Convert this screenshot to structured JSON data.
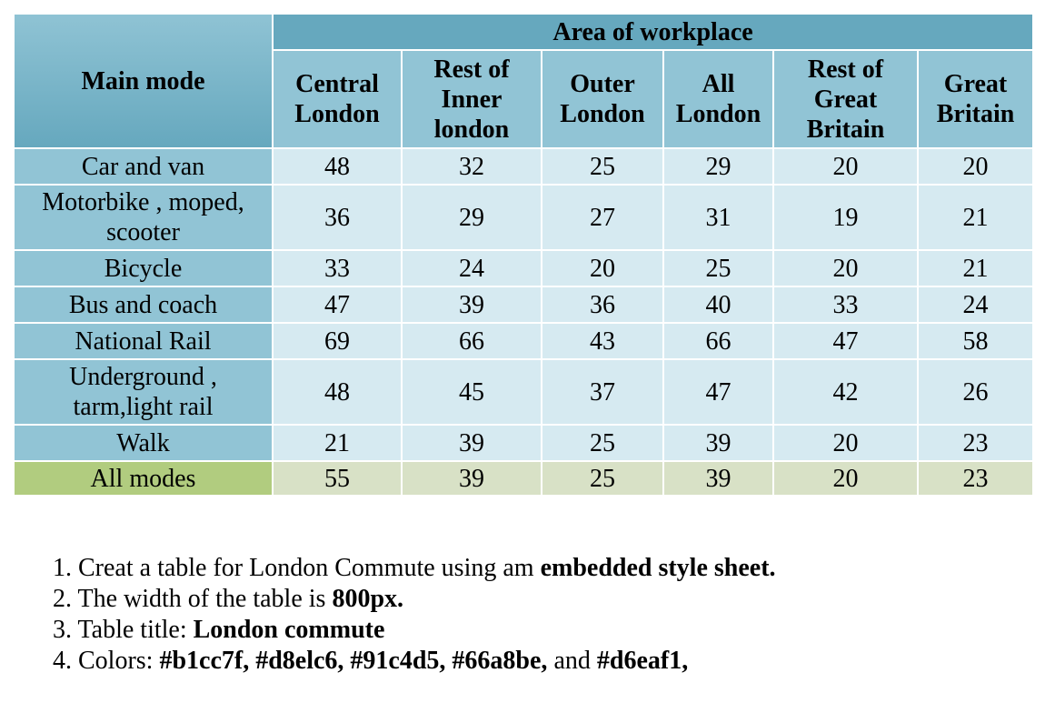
{
  "table": {
    "main_header": "Main mode",
    "group_header": "Area of workplace",
    "columns": [
      [
        "Central",
        "London"
      ],
      [
        "Rest of",
        "Inner",
        "london"
      ],
      [
        "Outer",
        "London"
      ],
      [
        "All",
        "London"
      ],
      [
        "Rest of",
        "Great",
        "Britain"
      ],
      [
        "Great",
        "Britain"
      ]
    ],
    "rows": [
      {
        "label": [
          "Car and van"
        ],
        "values": [
          "48",
          "32",
          "25",
          "29",
          "20",
          "20"
        ]
      },
      {
        "label": [
          "Motorbike , moped,",
          "scooter"
        ],
        "values": [
          "36",
          "29",
          "27",
          "31",
          "19",
          "21"
        ]
      },
      {
        "label": [
          "Bicycle"
        ],
        "values": [
          "33",
          "24",
          "20",
          "25",
          "20",
          "21"
        ]
      },
      {
        "label": [
          "Bus and coach"
        ],
        "values": [
          "47",
          "39",
          "36",
          "40",
          "33",
          "24"
        ]
      },
      {
        "label": [
          "National Rail"
        ],
        "values": [
          "69",
          "66",
          "43",
          "66",
          "47",
          "58"
        ]
      },
      {
        "label": [
          "Underground ,",
          "tarm,light rail"
        ],
        "values": [
          "48",
          "45",
          "37",
          "47",
          "42",
          "26"
        ]
      },
      {
        "label": [
          "Walk"
        ],
        "values": [
          "21",
          "39",
          "25",
          "39",
          "20",
          "23"
        ]
      }
    ],
    "total_row": {
      "label": "All modes",
      "values": [
        "55",
        "39",
        "25",
        "39",
        "20",
        "23"
      ]
    }
  },
  "instructions": [
    {
      "num": "1.",
      "text": "Creat a table for London Commute using am ",
      "bold": "embedded style sheet.",
      "after": ""
    },
    {
      "num": "2.",
      "text": "The width of the table is ",
      "bold": "800px.",
      "after": ""
    },
    {
      "num": "3.",
      "text": "Table title: ",
      "bold": "London commute",
      "after": ""
    },
    {
      "num": "4.",
      "text": "Colors: ",
      "bold": "#b1cc7f, #d8elc6, #91c4d5, #66a8be,",
      "after": " and ",
      "bold2": "#d6eaf1,"
    }
  ],
  "colors": {
    "header_dark": "#66a8be",
    "header_light": "#91c4d5",
    "cell": "#d6eaf1",
    "total_label": "#b1cc7f",
    "total_cell": "#d8e1c6"
  }
}
